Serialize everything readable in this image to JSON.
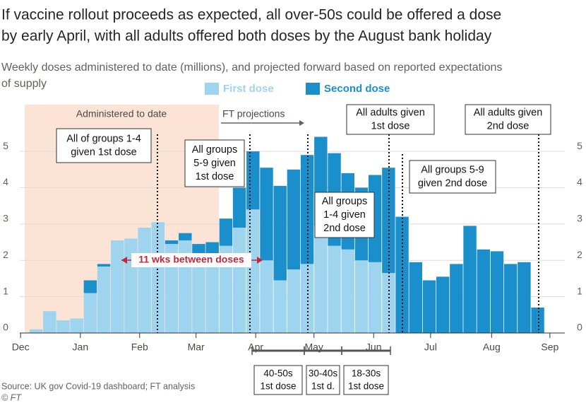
{
  "chart_data": {
    "type": "stacked_bar",
    "title": [
      "If vaccine rollout proceeds as expected, all over-50s could be offered a dose",
      "by early April, with all adults offered both doses by the August bank holiday"
    ],
    "subtitle": [
      "Weekly doses administered to date (millions), and projected forward based on reported expectations",
      "of supply"
    ],
    "categories": [
      null,
      null,
      null,
      null,
      null,
      null,
      null,
      null,
      null,
      null,
      null,
      null,
      null,
      null,
      null,
      null,
      null,
      null,
      null,
      null,
      null,
      null,
      null,
      null,
      null,
      null,
      null,
      null,
      null,
      null,
      null,
      null,
      null,
      null,
      null,
      null,
      null,
      null
    ],
    "series": [
      {
        "name": "First dose",
        "color": "#9fd4ef",
        "values": [
          0.1,
          0.6,
          0.35,
          0.4,
          1.1,
          1.83,
          2.55,
          2.6,
          2.9,
          3.05,
          2.45,
          2.55,
          2.15,
          2.05,
          2.4,
          2.9,
          3.4,
          2.0,
          1.45,
          1.75,
          1.9,
          2.95,
          2.4,
          2.3,
          2.0,
          1.95,
          1.65,
          0,
          0,
          0,
          0,
          0,
          0,
          0,
          0,
          0,
          0,
          0
        ]
      },
      {
        "name": "Second dose",
        "color": "#1b8fcc",
        "values": [
          0,
          0,
          0,
          0,
          0.35,
          0.07,
          0,
          0,
          0,
          0,
          0.1,
          0.2,
          0.3,
          0.45,
          0.75,
          1.1,
          1.6,
          2.55,
          2.6,
          2.75,
          3.0,
          2.45,
          2.55,
          2.1,
          2.0,
          2.4,
          2.9,
          3.2,
          1.95,
          1.45,
          1.55,
          1.9,
          2.95,
          2.3,
          2.25,
          1.9,
          1.95,
          0.7
        ]
      }
    ],
    "xlim": [
      -1.2,
      39
    ],
    "xticks": [
      {
        "value": -1.14,
        "label": "Dec"
      },
      {
        "value": 3.27,
        "label": "Jan"
      },
      {
        "value": 7.64,
        "label": "Feb"
      },
      {
        "value": 11.8,
        "label": "Mar"
      },
      {
        "value": 16.2,
        "label": "Apr"
      },
      {
        "value": 20.5,
        "label": "May"
      },
      {
        "value": 24.9,
        "label": "Jun"
      },
      {
        "value": 29.1,
        "label": "Jul"
      },
      {
        "value": 33.6,
        "label": "Aug"
      },
      {
        "value": 37.9,
        "label": "Sep"
      }
    ],
    "ylim": [
      0,
      6.5
    ],
    "yticks": [
      0,
      1,
      2,
      3,
      4,
      5
    ],
    "grid": true,
    "legend": "top",
    "regions": [
      "Administered to date",
      "FT projections"
    ],
    "gap_label": "11 wks between doses",
    "annotations": [
      [
        "All of groups 1-4",
        "given 1st dose"
      ],
      [
        "All groups",
        "5-9 given",
        "1st dose"
      ],
      [
        "All adults given",
        "1st dose"
      ],
      [
        "All adults given",
        "2nd dose"
      ],
      [
        "All groups 5-9",
        "given 2nd dose"
      ],
      [
        "All groups",
        "1-4 given",
        "2nd dose"
      ]
    ],
    "age_groups": [
      [
        "40-50s",
        "1st dose"
      ],
      [
        "30-40s",
        "1st d."
      ],
      [
        "18-30s",
        "1st dose"
      ]
    ],
    "source": [
      "Source: UK gov Covid-19 dashboard; FT analysis",
      "© FT"
    ]
  }
}
